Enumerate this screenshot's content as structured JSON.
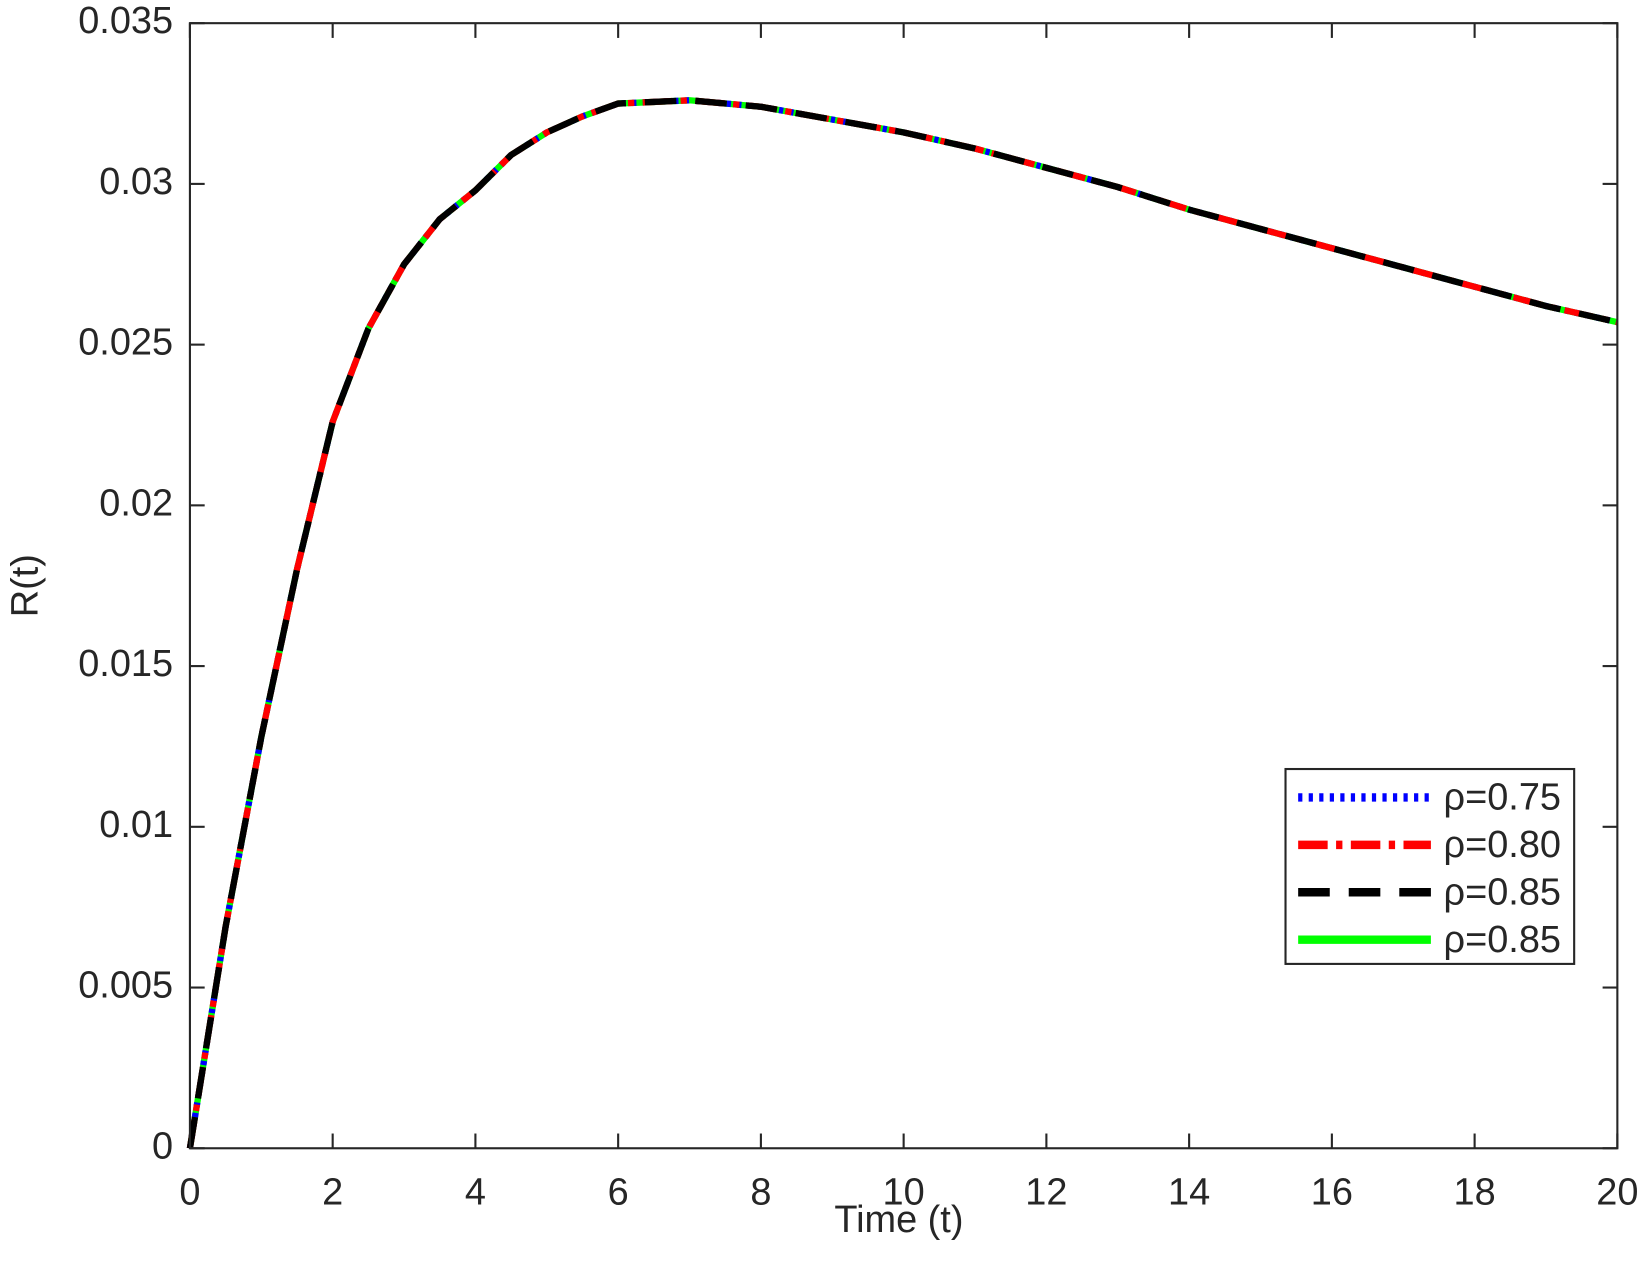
{
  "chart_data": {
    "type": "line",
    "x_label": "Time (t)",
    "y_label": "R(t)",
    "x": [
      0,
      0.5,
      1,
      1.5,
      2,
      2.5,
      3,
      3.5,
      4,
      4.5,
      5,
      5.5,
      6,
      7,
      8,
      9,
      10,
      11,
      12,
      13,
      14,
      15,
      16,
      17,
      18,
      19,
      20
    ],
    "series": [
      {
        "name": "ρ=0.85",
        "color": "#00ff00",
        "dash": "solid",
        "values": [
          0,
          0.0069,
          0.0128,
          0.018,
          0.0226,
          0.0255,
          0.0275,
          0.0289,
          0.0298,
          0.0309,
          0.0316,
          0.0321,
          0.0325,
          0.0326,
          0.0324,
          0.032,
          0.0316,
          0.0311,
          0.0305,
          0.0299,
          0.0292,
          0.0286,
          0.028,
          0.0274,
          0.0268,
          0.0262,
          0.0257
        ]
      },
      {
        "name": "ρ=0.75",
        "color": "#0000ff",
        "dash": "dotted",
        "values": [
          0,
          0.0069,
          0.0128,
          0.018,
          0.0226,
          0.0255,
          0.0275,
          0.0289,
          0.0298,
          0.0309,
          0.0316,
          0.0321,
          0.0325,
          0.0326,
          0.0324,
          0.032,
          0.0316,
          0.0311,
          0.0305,
          0.0299,
          0.0292,
          0.0286,
          0.028,
          0.0274,
          0.0268,
          0.0262,
          0.0257
        ]
      },
      {
        "name": "ρ=0.80",
        "color": "#ff0000",
        "dash": "dashdot",
        "values": [
          0,
          0.0069,
          0.0128,
          0.018,
          0.0226,
          0.0255,
          0.0275,
          0.0289,
          0.0298,
          0.0309,
          0.0316,
          0.0321,
          0.0325,
          0.0326,
          0.0324,
          0.032,
          0.0316,
          0.0311,
          0.0305,
          0.0299,
          0.0292,
          0.0286,
          0.028,
          0.0274,
          0.0268,
          0.0262,
          0.0257
        ]
      },
      {
        "name": "ρ=0.85",
        "color": "#000000",
        "dash": "dashed",
        "values": [
          0,
          0.0069,
          0.0128,
          0.018,
          0.0226,
          0.0255,
          0.0275,
          0.0289,
          0.0298,
          0.0309,
          0.0316,
          0.0321,
          0.0325,
          0.0326,
          0.0324,
          0.032,
          0.0316,
          0.0311,
          0.0305,
          0.0299,
          0.0292,
          0.0286,
          0.028,
          0.0274,
          0.0268,
          0.0262,
          0.0257
        ]
      }
    ],
    "legend_order": [
      1,
      2,
      3,
      0
    ],
    "xlim": [
      0,
      20
    ],
    "xticks": [
      0,
      2,
      4,
      6,
      8,
      10,
      12,
      14,
      16,
      18,
      20
    ],
    "ylim": [
      0,
      0.035
    ],
    "yticks": [
      0,
      0.005,
      0.01,
      0.015,
      0.02,
      0.025,
      0.03,
      0.035
    ],
    "legend": "lower right",
    "grid": false
  }
}
